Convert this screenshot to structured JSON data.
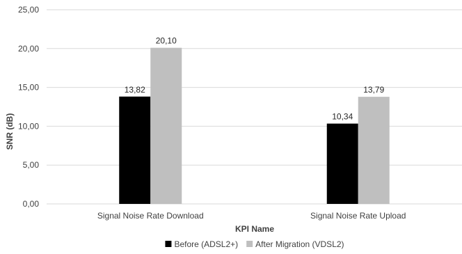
{
  "chart_data": {
    "type": "bar",
    "categories": [
      "Signal Noise Rate Download",
      "Signal Noise Rate Upload"
    ],
    "series": [
      {
        "name": "Before (ADSL2+)",
        "values": [
          13.82,
          10.34
        ],
        "labels": [
          "13,82",
          "10,34"
        ],
        "color": "#000000"
      },
      {
        "name": "After Migration (VDSL2)",
        "values": [
          20.1,
          13.79
        ],
        "labels": [
          "20,10",
          "13,79"
        ],
        "color": "#bfbfbf"
      }
    ],
    "title": "",
    "xlabel": "KPI Name",
    "ylabel": "SNR (dB)",
    "ylim": [
      0,
      25
    ],
    "yticks": [
      0,
      5,
      10,
      15,
      20,
      25
    ],
    "ytick_labels": [
      "0,00",
      "5,00",
      "10,00",
      "15,00",
      "20,00",
      "25,00"
    ],
    "grid": true,
    "legend_position": "bottom",
    "gridline_color": "#d9d9d9"
  }
}
